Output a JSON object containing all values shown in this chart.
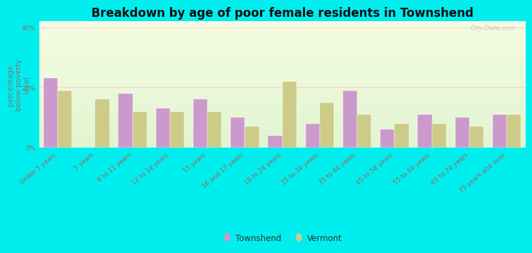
{
  "title": "Breakdown by age of poor female residents in Townshend",
  "ylabel": "percentage\nbelow poverty\nlevel",
  "categories": [
    "Under 5 years",
    "5 years",
    "6 to 11 years",
    "12 to 14 years",
    "15 years",
    "16 and 17 years",
    "18 to 24 years",
    "25 to 34 years",
    "35 to 44 years",
    "45 to 54 years",
    "55 to 64 years",
    "65 to 74 years",
    "75 years and over"
  ],
  "townshend": [
    23,
    0,
    18,
    13,
    16,
    10,
    4,
    8,
    19,
    6,
    11,
    10,
    11
  ],
  "vermont": [
    19,
    16,
    12,
    12,
    12,
    7,
    22,
    15,
    11,
    8,
    8,
    7,
    11
  ],
  "townshend_color": "#cc99cc",
  "vermont_color": "#cccc88",
  "outer_bg": "#00eeee",
  "ylim": [
    0,
    42
  ],
  "yticks": [
    0,
    20,
    40
  ],
  "ytick_labels": [
    "0%",
    "20%",
    "40%"
  ],
  "bar_width": 0.38,
  "title_fontsize": 12,
  "axis_label_fontsize": 7.5,
  "tick_fontsize": 6.5,
  "legend_fontsize": 8.5
}
